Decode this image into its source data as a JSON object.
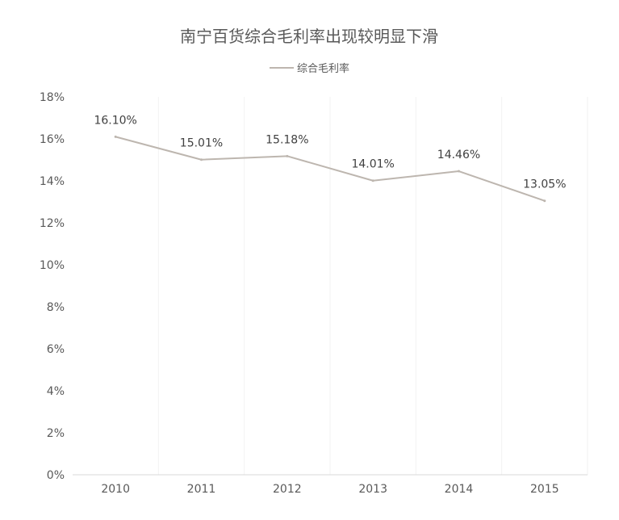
{
  "chart_data": {
    "type": "line",
    "title": "南宁百货综合毛利率出现较明显下滑",
    "categories": [
      "2010",
      "2011",
      "2012",
      "2013",
      "2014",
      "2015"
    ],
    "series": [
      {
        "name": "综合毛利率",
        "values": [
          16.1,
          15.01,
          15.18,
          14.01,
          14.46,
          13.05
        ],
        "labels": [
          "16.10%",
          "15.01%",
          "15.18%",
          "14.01%",
          "14.46%",
          "13.05%"
        ]
      }
    ],
    "y_ticks": [
      "0%",
      "2%",
      "4%",
      "6%",
      "8%",
      "10%",
      "12%",
      "14%",
      "16%",
      "18%"
    ],
    "ylim": [
      0,
      18
    ],
    "xlabel": "",
    "ylabel": "",
    "legend_position": "top-center",
    "grid": "vertical",
    "colors": {
      "line": "#BDB6AF",
      "text": "#595959",
      "label": "#404040",
      "grid": "#F2F2F2",
      "axis": "#D9D9D9"
    }
  }
}
